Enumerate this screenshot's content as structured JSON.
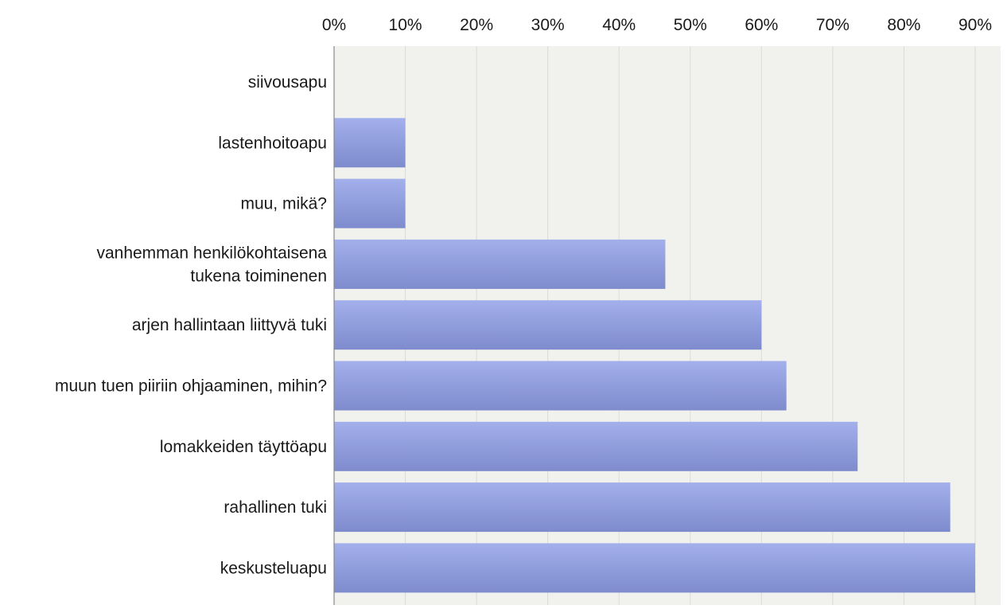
{
  "chart_data": {
    "type": "bar",
    "orientation": "horizontal",
    "title": "",
    "xlabel": "",
    "ylabel": "",
    "xlim": [
      0,
      90
    ],
    "x_ticks": [
      {
        "value": 0,
        "label": "0%"
      },
      {
        "value": 10,
        "label": "10%"
      },
      {
        "value": 20,
        "label": "20%"
      },
      {
        "value": 30,
        "label": "30%"
      },
      {
        "value": 40,
        "label": "40%"
      },
      {
        "value": 50,
        "label": "50%"
      },
      {
        "value": 60,
        "label": "60%"
      },
      {
        "value": 70,
        "label": "70%"
      },
      {
        "value": 80,
        "label": "80%"
      },
      {
        "value": 90,
        "label": "90%"
      }
    ],
    "x_tick_position": "top",
    "grid": true,
    "legend": "none",
    "categories": [
      [
        "siivousapu"
      ],
      [
        "lastenhoitoapu"
      ],
      [
        "muu, mikä?"
      ],
      [
        "vanhemman henkilökohtaisena",
        "tukena toiminenen"
      ],
      [
        "arjen hallintaan liittyvä tuki"
      ],
      [
        "muun tuen piiriin ohjaaminen, mihin?"
      ],
      [
        "lomakkeiden täyttöapu"
      ],
      [
        "rahallinen tuki"
      ],
      [
        "keskusteluapu"
      ]
    ],
    "values": [
      0,
      10,
      10,
      46.5,
      60,
      63.5,
      73.5,
      86.5,
      90
    ],
    "colors": {
      "bar_top": "#a3b0ec",
      "bar_bottom": "#7e8bcd",
      "plot_bg": "#f1f2ed",
      "grid": "#d9dbd4",
      "axis": "#8a8a8a"
    }
  }
}
